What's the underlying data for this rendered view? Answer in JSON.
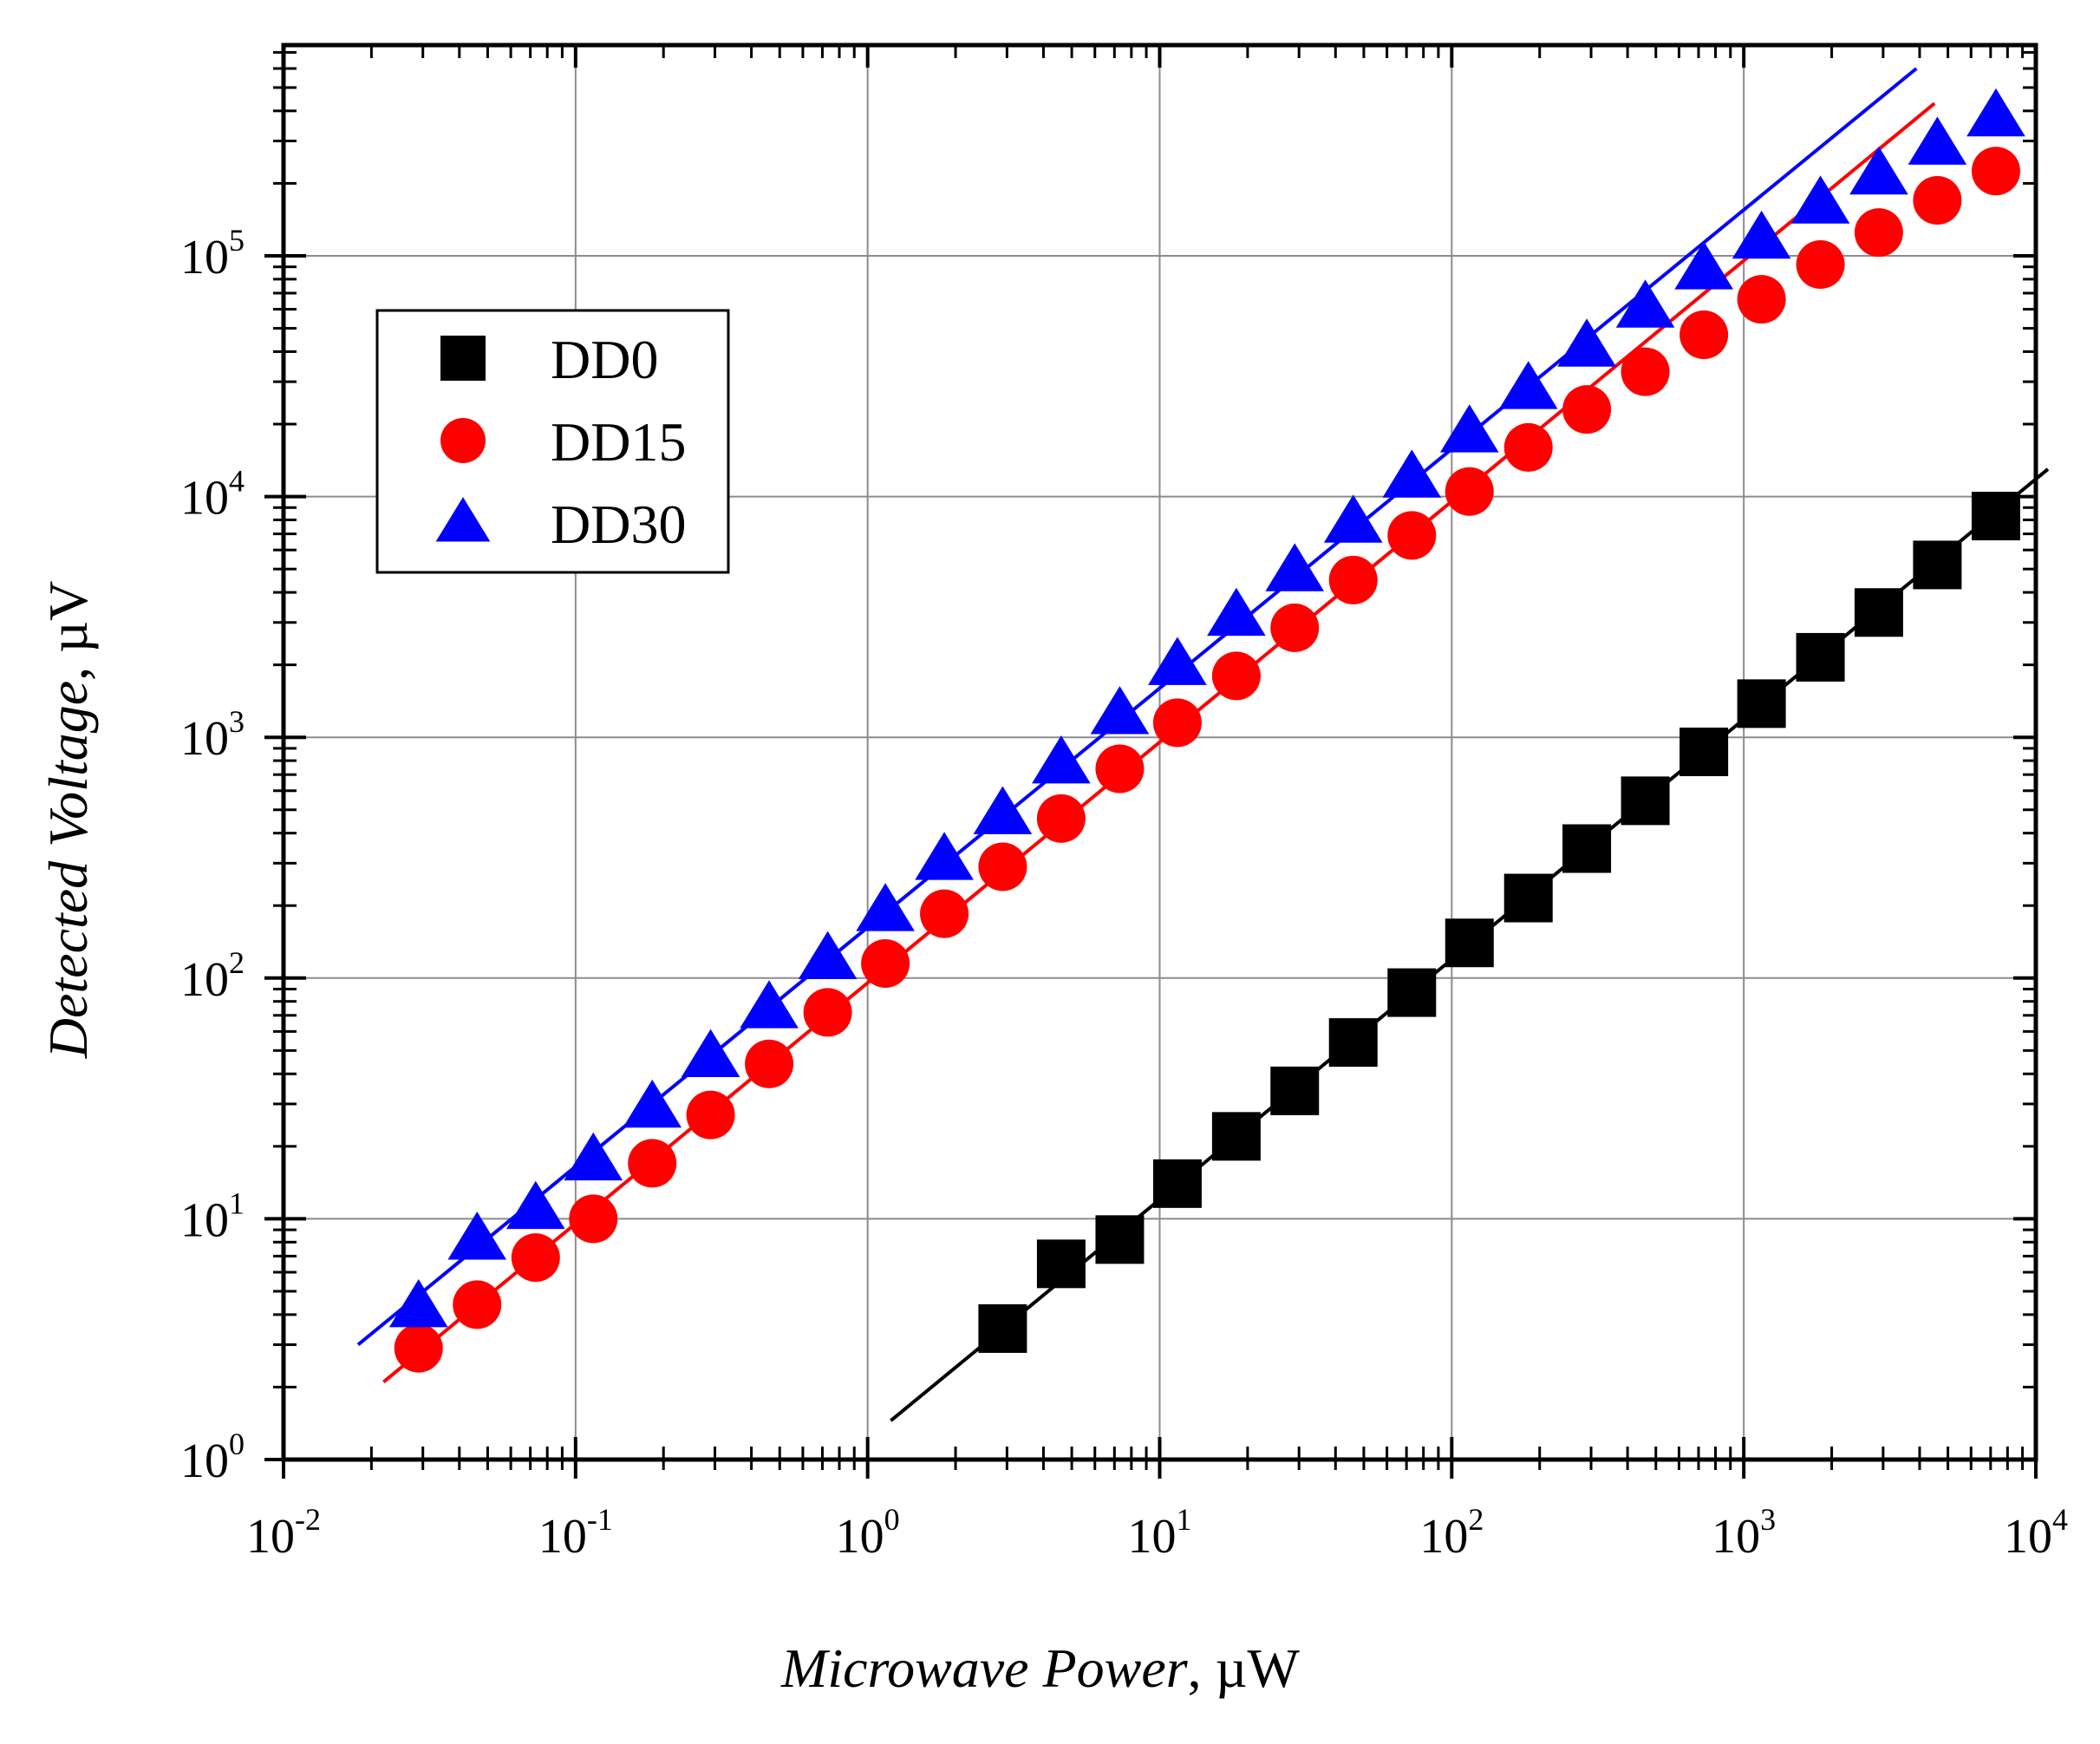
{
  "chart_data": {
    "type": "scatter",
    "title": "",
    "xlabel": "Microwave Power, µW",
    "xlabel_italic": "Microwave Power",
    "xlabel_unit": ", µW",
    "ylabel": "Detected Voltage, µV",
    "ylabel_italic": "Detected Voltage",
    "ylabel_unit": ", µV",
    "xscale": "log",
    "yscale": "log",
    "xlim": [
      0.01,
      12000
    ],
    "ylim": [
      1,
      1000000
    ],
    "x_ticks": [
      {
        "value": 0.01,
        "base": "10",
        "exp": "-2"
      },
      {
        "value": 0.1,
        "base": "10",
        "exp": "-1"
      },
      {
        "value": 1,
        "base": "10",
        "exp": "0"
      },
      {
        "value": 10,
        "base": "10",
        "exp": "1"
      },
      {
        "value": 100,
        "base": "10",
        "exp": "2"
      },
      {
        "value": 1000,
        "base": "10",
        "exp": "3"
      },
      {
        "value": 10000,
        "base": "10",
        "exp": "4"
      }
    ],
    "y_ticks": [
      {
        "value": 1,
        "base": "10",
        "exp": "0"
      },
      {
        "value": 10,
        "base": "10",
        "exp": "1"
      },
      {
        "value": 100,
        "base": "10",
        "exp": "2"
      },
      {
        "value": 1000,
        "base": "10",
        "exp": "3"
      },
      {
        "value": 10000,
        "base": "10",
        "exp": "4"
      },
      {
        "value": 100000,
        "base": "10",
        "exp": "5"
      }
    ],
    "grid": true,
    "legend_position": "upper-left",
    "series": [
      {
        "name": "DD0",
        "marker": "square",
        "color": "#000000",
        "x": [
          2.9,
          4.6,
          7.3,
          11.5,
          18.3,
          29,
          46,
          73,
          115,
          183,
          290,
          460,
          730,
          1150,
          1830,
          2900,
          4600,
          7300
        ],
        "y": [
          3.5,
          6.5,
          8.2,
          14,
          22,
          34,
          54,
          87,
          140,
          215,
          345,
          545,
          870,
          1380,
          2150,
          3300,
          5200,
          8300
        ],
        "fit": {
          "x": [
            1.2,
            11000
          ],
          "y": [
            1.45,
            13000
          ]
        }
      },
      {
        "name": "DD15",
        "marker": "circle",
        "color": "#ff0000",
        "x": [
          0.029,
          0.046,
          0.073,
          0.115,
          0.183,
          0.29,
          0.46,
          0.73,
          1.15,
          1.83,
          2.9,
          4.6,
          7.3,
          11.5,
          18.3,
          29,
          46,
          73,
          115,
          183,
          290,
          460,
          730,
          1150,
          1830,
          2900,
          4600,
          7300
        ],
        "y": [
          2.9,
          4.4,
          6.9,
          10,
          17,
          27,
          44,
          72,
          115,
          185,
          290,
          460,
          740,
          1150,
          1800,
          2850,
          4500,
          6900,
          10500,
          16000,
          23000,
          33000,
          47000,
          66000,
          92000,
          125000,
          170000,
          225000
        ],
        "fit": {
          "x": [
            0.022,
            4500
          ],
          "y": [
            2.1,
            430000
          ]
        }
      },
      {
        "name": "DD30",
        "marker": "triangle",
        "color": "#0000ff",
        "x": [
          0.029,
          0.046,
          0.073,
          0.115,
          0.183,
          0.29,
          0.46,
          0.73,
          1.15,
          1.83,
          2.9,
          4.6,
          7.3,
          11.5,
          18.3,
          29,
          46,
          73,
          115,
          183,
          290,
          460,
          730,
          1150,
          1830,
          2900,
          4600,
          7300
        ],
        "y": [
          4.3,
          8.2,
          11,
          17.5,
          29,
          47,
          75,
          120,
          190,
          310,
          480,
          780,
          1250,
          2000,
          3200,
          4900,
          7800,
          12000,
          18500,
          28000,
          42000,
          61000,
          88000,
          118000,
          165000,
          218000,
          290000,
          380000
        ],
        "fit": {
          "x": [
            0.018,
            3900
          ],
          "y": [
            3.0,
            600000
          ]
        }
      }
    ]
  }
}
